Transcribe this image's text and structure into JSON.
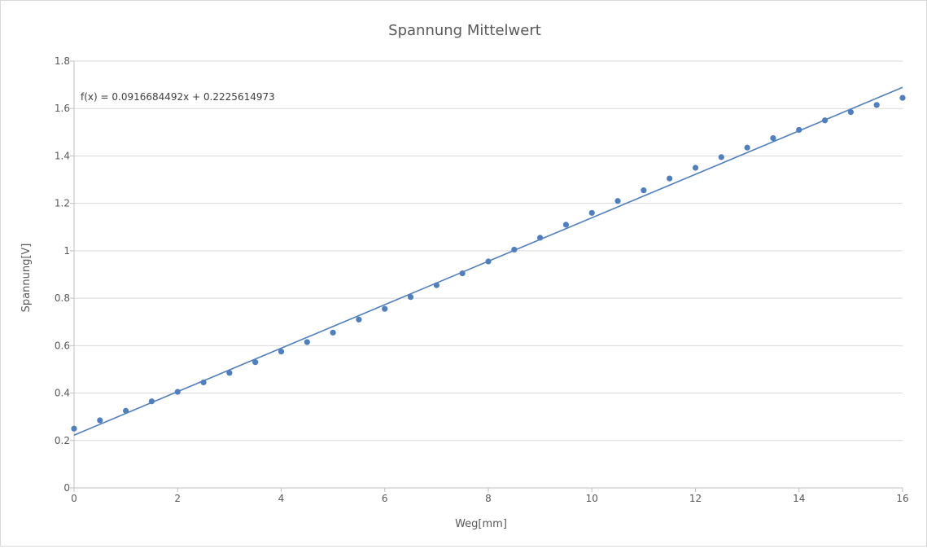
{
  "chart_data": {
    "type": "scatter",
    "title": "Spannung Mittelwert",
    "xlabel": "Weg[mm]",
    "ylabel": "Spannung[V]",
    "xlim": [
      0,
      16
    ],
    "ylim": [
      0,
      1.8
    ],
    "x_ticks": [
      0,
      2,
      4,
      6,
      8,
      10,
      12,
      14,
      16
    ],
    "y_ticks": [
      0,
      0.2,
      0.4,
      0.6,
      0.8,
      1,
      1.2,
      1.4,
      1.6,
      1.8
    ],
    "x_tick_labels": [
      "0",
      "2",
      "4",
      "6",
      "8",
      "10",
      "12",
      "14",
      "16"
    ],
    "y_tick_labels": [
      "0",
      "0.2",
      "0.4",
      "0.6",
      "0.8",
      "1",
      "1.2",
      "1.4",
      "1.6",
      "1.8"
    ],
    "grid": {
      "horizontal": true,
      "vertical": false
    },
    "legend": "none",
    "series": [
      {
        "x": [
          0,
          0.5,
          1,
          1.5,
          2,
          2.5,
          3,
          3.5,
          4,
          4.5,
          5,
          5.5,
          6,
          6.5,
          7,
          7.5,
          8,
          8.5,
          9,
          9.5,
          10,
          10.5,
          11,
          11.5,
          12,
          12.5,
          13,
          13.5,
          14,
          14.5,
          15,
          15.5,
          16
        ],
        "y": [
          0.25,
          0.285,
          0.325,
          0.365,
          0.405,
          0.445,
          0.485,
          0.53,
          0.575,
          0.615,
          0.655,
          0.71,
          0.755,
          0.805,
          0.855,
          0.905,
          0.955,
          1.005,
          1.055,
          1.11,
          1.16,
          1.21,
          1.255,
          1.305,
          1.35,
          1.395,
          1.435,
          1.475,
          1.51,
          1.55,
          1.585,
          1.615,
          1.645
        ],
        "color": "#4f7fbf"
      }
    ],
    "trendline": {
      "type": "linear",
      "slope": 0.0916684492,
      "intercept": 0.2225614973,
      "equation": "f(x) = 0.0916684492x + 0.2225614973",
      "color": "#4f7fbf"
    },
    "colors": {
      "points": "#4f7fbf",
      "line": "#4f7fbf",
      "grid": "#d9d9d9",
      "axis": "#bfbfbf",
      "text": "#595959"
    }
  }
}
